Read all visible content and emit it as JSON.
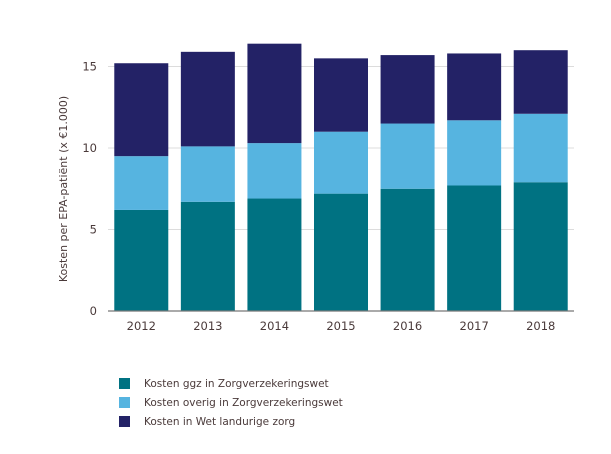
{
  "chart_data": {
    "type": "bar",
    "stacked": true,
    "title": "",
    "xlabel": "",
    "ylabel": "Kosten per EPA-patiënt (x €1.000)",
    "ylim": [
      0,
      16.5
    ],
    "yticks": [
      0,
      5,
      10,
      15
    ],
    "grid": true,
    "legend_position": "bottom-left",
    "categories": [
      "2012",
      "2013",
      "2014",
      "2015",
      "2016",
      "2017",
      "2018"
    ],
    "series": [
      {
        "name": "Kosten ggz in Zorgverzekeringswet",
        "color": "#007282",
        "values": [
          6.2,
          6.7,
          6.9,
          7.2,
          7.5,
          7.7,
          7.9
        ]
      },
      {
        "name": "Kosten overig in Zorgverzekeringswet",
        "color": "#56b4e0",
        "values": [
          3.3,
          3.4,
          3.4,
          3.8,
          4.0,
          4.0,
          4.2
        ]
      },
      {
        "name": "Kosten in Wet landurige zorg",
        "color": "#232266",
        "values": [
          5.7,
          5.8,
          6.1,
          4.5,
          4.2,
          4.1,
          3.9
        ]
      }
    ]
  }
}
